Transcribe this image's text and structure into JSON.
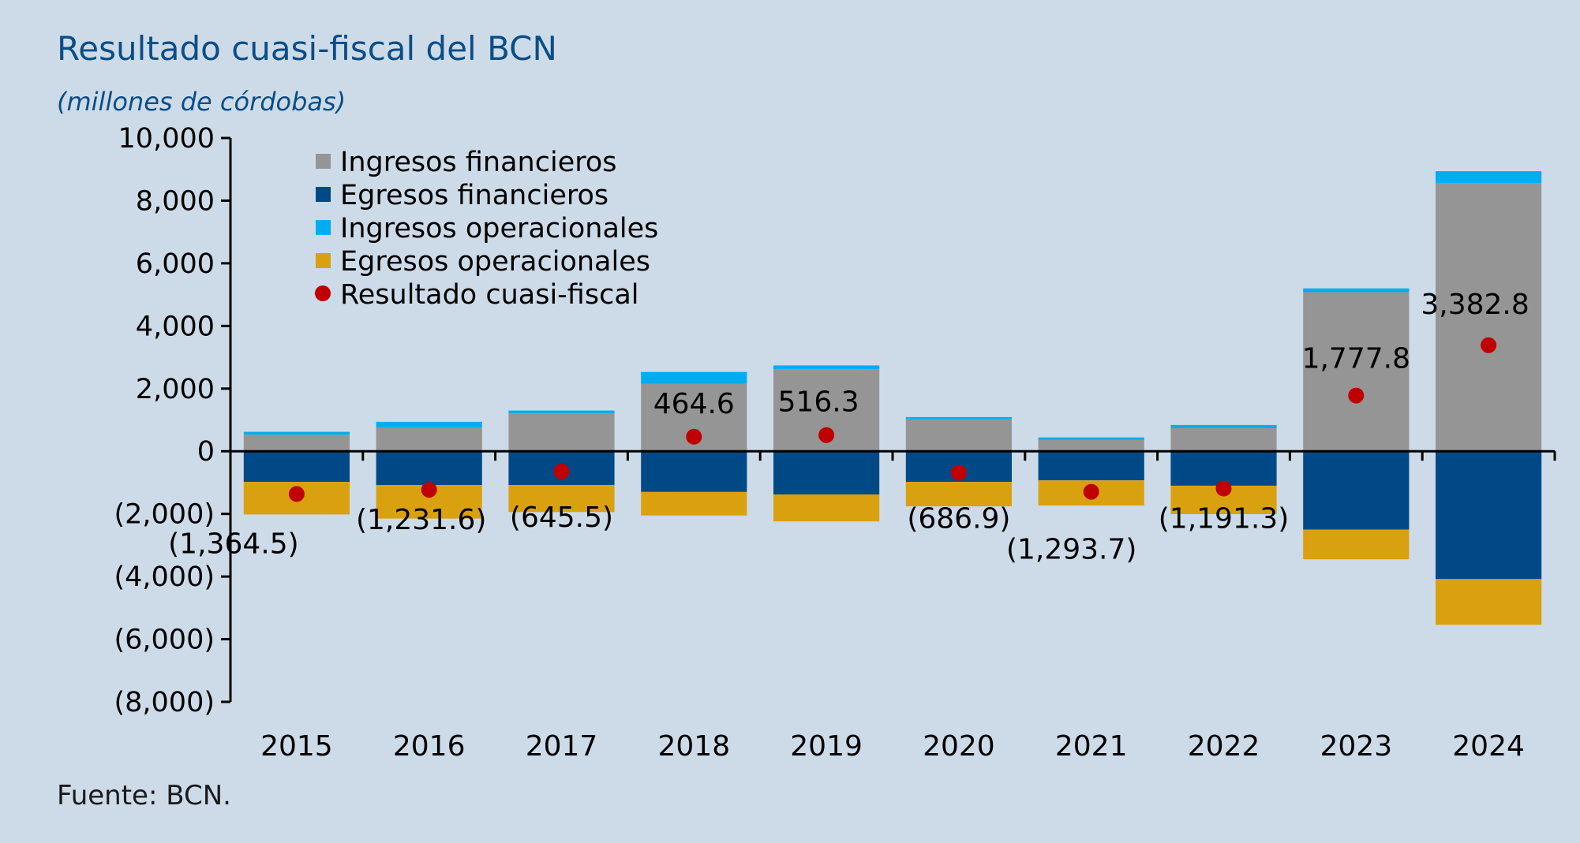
{
  "chart_data": {
    "type": "bar",
    "stacked": true,
    "title": "Resultado cuasi-fiscal del BCN",
    "subtitle": "(millones de córdobas)",
    "source": "Fuente: BCN.",
    "categories": [
      "2015",
      "2016",
      "2017",
      "2018",
      "2019",
      "2020",
      "2021",
      "2022",
      "2023",
      "2024"
    ],
    "ylim": [
      -8000,
      10000
    ],
    "yticks": [
      10000,
      8000,
      6000,
      4000,
      2000,
      0,
      -2000,
      -4000,
      -6000,
      -8000
    ],
    "ytick_labels": [
      "10,000",
      "8,000",
      "6,000",
      "4,000",
      "2,000",
      "0",
      "(2,000)",
      "(4,000)",
      "(6,000)",
      "(8,000)"
    ],
    "legend_position": "top-left",
    "grid": false,
    "series": [
      {
        "name": "Ingresos financieros",
        "color": "#959595",
        "values": [
          530,
          760,
          1210,
          2150,
          2620,
          1020,
          360,
          740,
          5080,
          8560
        ]
      },
      {
        "name": "Egresos financieros",
        "color": "#004987",
        "values": [
          -980,
          -1080,
          -1080,
          -1300,
          -1380,
          -980,
          -930,
          -1100,
          -2500,
          -4080
        ]
      },
      {
        "name": "Ingresos operacionales",
        "color": "#00adef",
        "values": [
          90,
          180,
          90,
          380,
          120,
          70,
          80,
          100,
          120,
          380
        ]
      },
      {
        "name": "Egresos operacionales",
        "color": "#d9a110",
        "values": [
          -1040,
          -1070,
          -860,
          -750,
          -860,
          -780,
          -800,
          -910,
          -950,
          -1460
        ]
      },
      {
        "name": "Resultado cuasi-fiscal",
        "type": "scatter",
        "color": "#c00000",
        "values": [
          -1364.5,
          -1231.6,
          -645.5,
          464.6,
          516.3,
          -686.9,
          -1293.7,
          -1191.3,
          1777.8,
          3382.8
        ],
        "labels": [
          "(1,364.5)",
          "(1,231.6)",
          "(645.5)",
          "464.6",
          "516.3",
          "(686.9)",
          "(1,293.7)",
          "(1,191.3)",
          "1,777.8",
          "3,382.8"
        ]
      }
    ]
  }
}
